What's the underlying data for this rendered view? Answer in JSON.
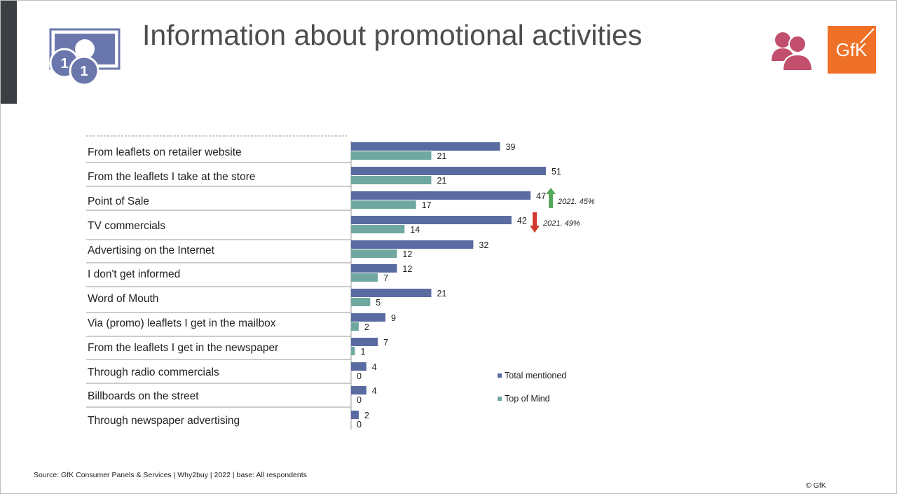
{
  "header": {
    "title": "Information about promotional activities",
    "logo_text": "GfK"
  },
  "colors": {
    "total": "#5a6ba1",
    "top": "#6fa8a0",
    "up": "#55a85a",
    "down": "#d23a2e",
    "logo_bg": "#ef7127",
    "people": "#c24f6e"
  },
  "chart_data": {
    "type": "bar",
    "orientation": "horizontal",
    "categories": [
      "From leaflets on retailer website",
      "From the leaflets I take at the store",
      "Point of Sale",
      "TV commercials",
      "Advertising on the Internet",
      "I don't get informed",
      "Word of Mouth",
      "Via (promo) leaflets I get in the mailbox",
      "From the leaflets I get in the newspaper",
      "Through radio commercials",
      "Billboards on the street",
      "Through newspaper advertising"
    ],
    "series": [
      {
        "name": "Total mentioned",
        "values": [
          39,
          51,
          47,
          42,
          32,
          12,
          21,
          9,
          7,
          4,
          4,
          2
        ]
      },
      {
        "name": "Top of Mind",
        "values": [
          21,
          21,
          17,
          14,
          12,
          7,
          5,
          2,
          1,
          0,
          0,
          0
        ]
      }
    ],
    "annotations": [
      {
        "category": "Point of Sale",
        "direction": "up",
        "text": "2021. 45%"
      },
      {
        "category": "TV commercials",
        "direction": "down",
        "text": "2021. 49%"
      }
    ],
    "legend": [
      "Total mentioned",
      "Top of Mind"
    ],
    "legend_placement": "right"
  },
  "footer": {
    "source": "Source: GfK Consumer Panels & Services | Why2buy | 2022 | base: All respondents",
    "copyright": "© GfK"
  }
}
